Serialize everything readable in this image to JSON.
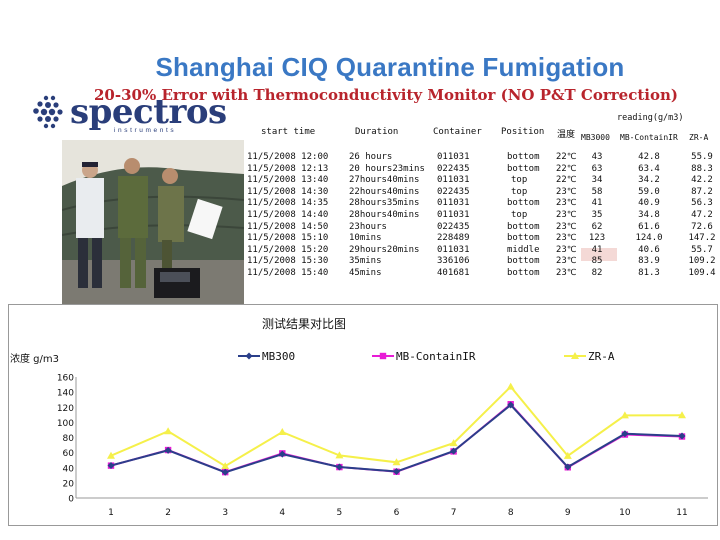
{
  "title": "Shanghai CIQ Quarantine Fumigation",
  "subtitle": "20-30% Error with Thermoconductivity  Monitor (NO P&T Correction)",
  "logo": {
    "word": "spectros",
    "sub": "instruments"
  },
  "table": {
    "reading_label": "reading(g/m3)",
    "headers": [
      "start time",
      "Duration",
      "Container",
      "Position",
      "温度",
      "MB3000",
      "MB-ContainIR",
      "ZR-A"
    ],
    "rows": [
      [
        "11/5/2008 12:00",
        "26 hours",
        "011031",
        "bottom",
        "22℃",
        "43",
        "42.8",
        "55.9"
      ],
      [
        "11/5/2008 12:13",
        "20 hours23mins",
        "022435",
        "bottom",
        "22℃",
        "63",
        "63.4",
        "88.3"
      ],
      [
        "11/5/2008 13:40",
        "27hours40mins",
        "011031",
        "top",
        "22℃",
        "34",
        "34.2",
        "42.2"
      ],
      [
        "11/5/2008 14:30",
        "22hours40mins",
        "022435",
        "top",
        "23℃",
        "58",
        "59.0",
        "87.2"
      ],
      [
        "11/5/2008 14:35",
        "28hours35mins",
        "011031",
        "bottom",
        "23℃",
        "41",
        "40.9",
        "56.3"
      ],
      [
        "11/5/2008 14:40",
        "28hours40mins",
        "011031",
        "top",
        "23℃",
        "35",
        "34.8",
        "47.2"
      ],
      [
        "11/5/2008 14:50",
        "23hours",
        "022435",
        "bottom",
        "23℃",
        "62",
        "61.6",
        "72.6"
      ],
      [
        "11/5/2008 15:10",
        "10mins",
        "228489",
        "bottom",
        "23℃",
        "123",
        "124.0",
        "147.2"
      ],
      [
        "11/5/2008 15:20",
        "29hours20mins",
        "011031",
        "middle",
        "23℃",
        "41",
        "40.6",
        "55.7"
      ],
      [
        "11/5/2008 15:30",
        "35mins",
        "336106",
        "bottom",
        "23℃",
        "85",
        "83.9",
        "109.2"
      ],
      [
        "11/5/2008 15:40",
        "45mins",
        "401681",
        "bottom",
        "23℃",
        "82",
        "81.3",
        "109.4"
      ]
    ]
  },
  "colors": {
    "title": "#3a78c4",
    "subtitle": "#b8242c",
    "series_mb3000": "#2b3f8a",
    "series_mbcontain": "#e81bd6",
    "series_zra": "#f5f04a",
    "highlight_cell": "#f4d9d6"
  },
  "chart_data": {
    "type": "line",
    "title": "测试结果对比图",
    "ylabel": "浓度 g/m3",
    "xlabel": "",
    "x": [
      1,
      2,
      3,
      4,
      5,
      6,
      7,
      8,
      9,
      10,
      11
    ],
    "ylim": [
      0,
      160
    ],
    "yticks": [
      0,
      20,
      40,
      60,
      80,
      100,
      120,
      140,
      160
    ],
    "legend_position": "top",
    "series": [
      {
        "name": "MB300",
        "values": [
          43,
          63,
          34,
          58,
          41,
          35,
          62,
          123,
          41,
          85,
          82
        ]
      },
      {
        "name": "MB-ContainIR",
        "values": [
          42.8,
          63.4,
          34.2,
          59.0,
          40.9,
          34.8,
          61.6,
          124.0,
          40.6,
          83.9,
          81.3
        ]
      },
      {
        "name": "ZR-A",
        "values": [
          55.9,
          88.3,
          42.2,
          87.2,
          56.3,
          47.2,
          72.6,
          147.2,
          55.7,
          109.2,
          109.4
        ]
      }
    ]
  }
}
